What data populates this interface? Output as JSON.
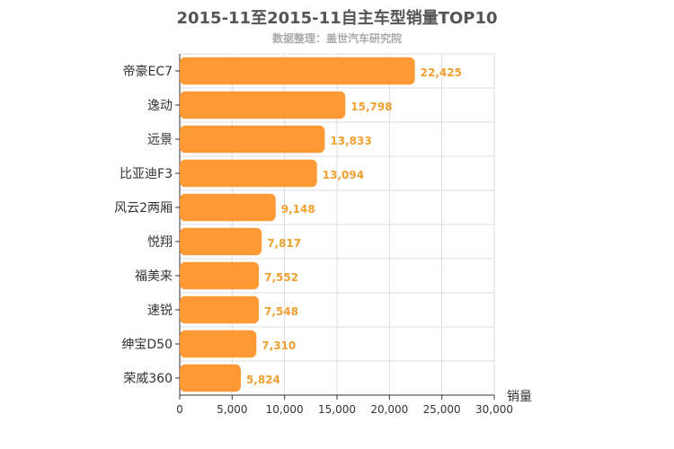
{
  "chart_data": {
    "type": "bar",
    "orientation": "horizontal",
    "title": "2015-11至2015-11自主车型销量TOP10",
    "subtitle": "数据整理：盖世汽车研究院",
    "xlabel": "销量",
    "ylabel": "",
    "xlim": [
      0,
      30000
    ],
    "x_ticks": [
      "0",
      "5,000",
      "10,000",
      "15,000",
      "20,000",
      "25,000",
      "30,000"
    ],
    "grid": true,
    "categories": [
      "帝豪EC7",
      "逸动",
      "远景",
      "比亚迪F3",
      "风云2两厢",
      "悦翔",
      "福美来",
      "速锐",
      "绅宝D50",
      "荣威360"
    ],
    "values": [
      22425,
      15798,
      13833,
      13094,
      9148,
      7817,
      7552,
      7548,
      7310,
      5824
    ],
    "value_labels": [
      "22,425",
      "15,798",
      "13,833",
      "13,094",
      "9,148",
      "7,817",
      "7,552",
      "7,548",
      "7,310",
      "5,824"
    ],
    "bar_color": "#ff9933",
    "label_color": "#f0a030"
  }
}
